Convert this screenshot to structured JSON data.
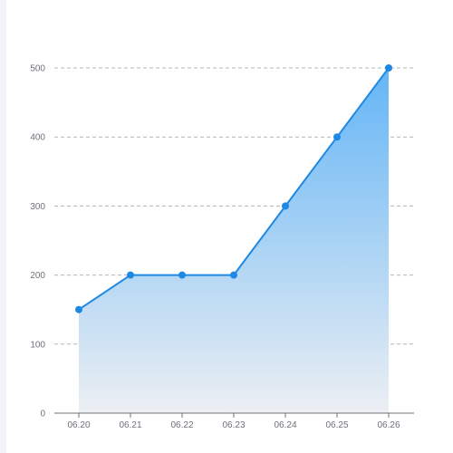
{
  "chart_data": {
    "type": "area",
    "categories": [
      "06.20",
      "06.21",
      "06.22",
      "06.23",
      "06.24",
      "06.25",
      "06.26"
    ],
    "series": [
      {
        "values": [
          150,
          200,
          200,
          200,
          300,
          400,
          500
        ]
      }
    ],
    "y_ticks": [
      "0",
      "100",
      "200",
      "300",
      "400",
      "500"
    ],
    "ylim": [
      0,
      500
    ],
    "grid": "horizontal-dashed",
    "legend": "none",
    "colors": {
      "line": "#1e88e5",
      "area_top": "#64b5f6",
      "area_bottom": "#eceff3",
      "grid": "#b0b4ba",
      "axis": "#6e7079",
      "label": "#6e7079"
    }
  }
}
